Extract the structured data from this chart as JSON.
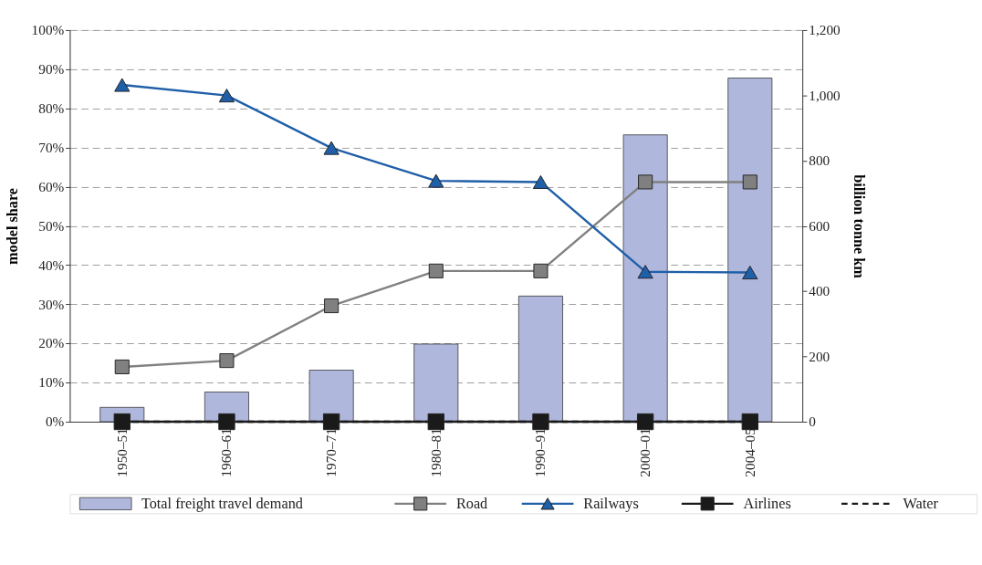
{
  "chart_data": {
    "type": "bar",
    "categories": [
      "1950–51",
      "1960–61",
      "1970–71",
      "1980–81",
      "1990–91",
      "2000–01",
      "2004–05"
    ],
    "ylabel": "model share",
    "y2label": "billion tonne km",
    "ylim": [
      0,
      100
    ],
    "yticks": [
      {
        "value": 0,
        "label": "0%"
      },
      {
        "value": 10,
        "label": "10%"
      },
      {
        "value": 20,
        "label": "20%"
      },
      {
        "value": 30,
        "label": "30%"
      },
      {
        "value": 40,
        "label": "40%"
      },
      {
        "value": 50,
        "label": "50%"
      },
      {
        "value": 60,
        "label": "60%"
      },
      {
        "value": 70,
        "label": "70%"
      },
      {
        "value": 80,
        "label": "80%"
      },
      {
        "value": 90,
        "label": "90%"
      },
      {
        "value": 100,
        "label": "100%"
      }
    ],
    "y2lim": [
      0,
      1200
    ],
    "y2ticks": [
      0,
      200,
      400,
      600,
      800,
      {
        "value": 1000,
        "label": "1,000"
      },
      {
        "value": 1200,
        "label": "1,200"
      }
    ],
    "grid": "y",
    "legend": "bottom",
    "series": [
      {
        "name": "Total freight travel demand",
        "axis": "y2",
        "color": "#b0b7dc",
        "values": [
          44,
          91,
          158,
          238,
          385,
          879,
          1053
        ]
      },
      {
        "name": "Road",
        "type": "line",
        "color": "#808080",
        "marker": "square",
        "line_style": "solid",
        "values": [
          14.0,
          15.6,
          29.6,
          38.5,
          38.5,
          61.2,
          61.2
        ]
      },
      {
        "name": "Railways",
        "type": "line",
        "color": "#1f5fa8",
        "marker": "triangle",
        "line_style": "solid",
        "values": [
          86.0,
          83.3,
          69.9,
          61.5,
          61.2,
          38.3,
          38.1
        ]
      },
      {
        "name": "Airlines",
        "type": "line",
        "color": "#1a1a1a",
        "marker": "square",
        "line_style": "solid",
        "values": [
          0,
          0,
          0,
          0,
          0,
          0,
          0
        ]
      },
      {
        "name": "Water",
        "type": "line",
        "color": "#1a1a1a",
        "marker": "none",
        "line_style": "dashed",
        "values": [
          0,
          0,
          0,
          0,
          0,
          0,
          0
        ]
      }
    ]
  }
}
